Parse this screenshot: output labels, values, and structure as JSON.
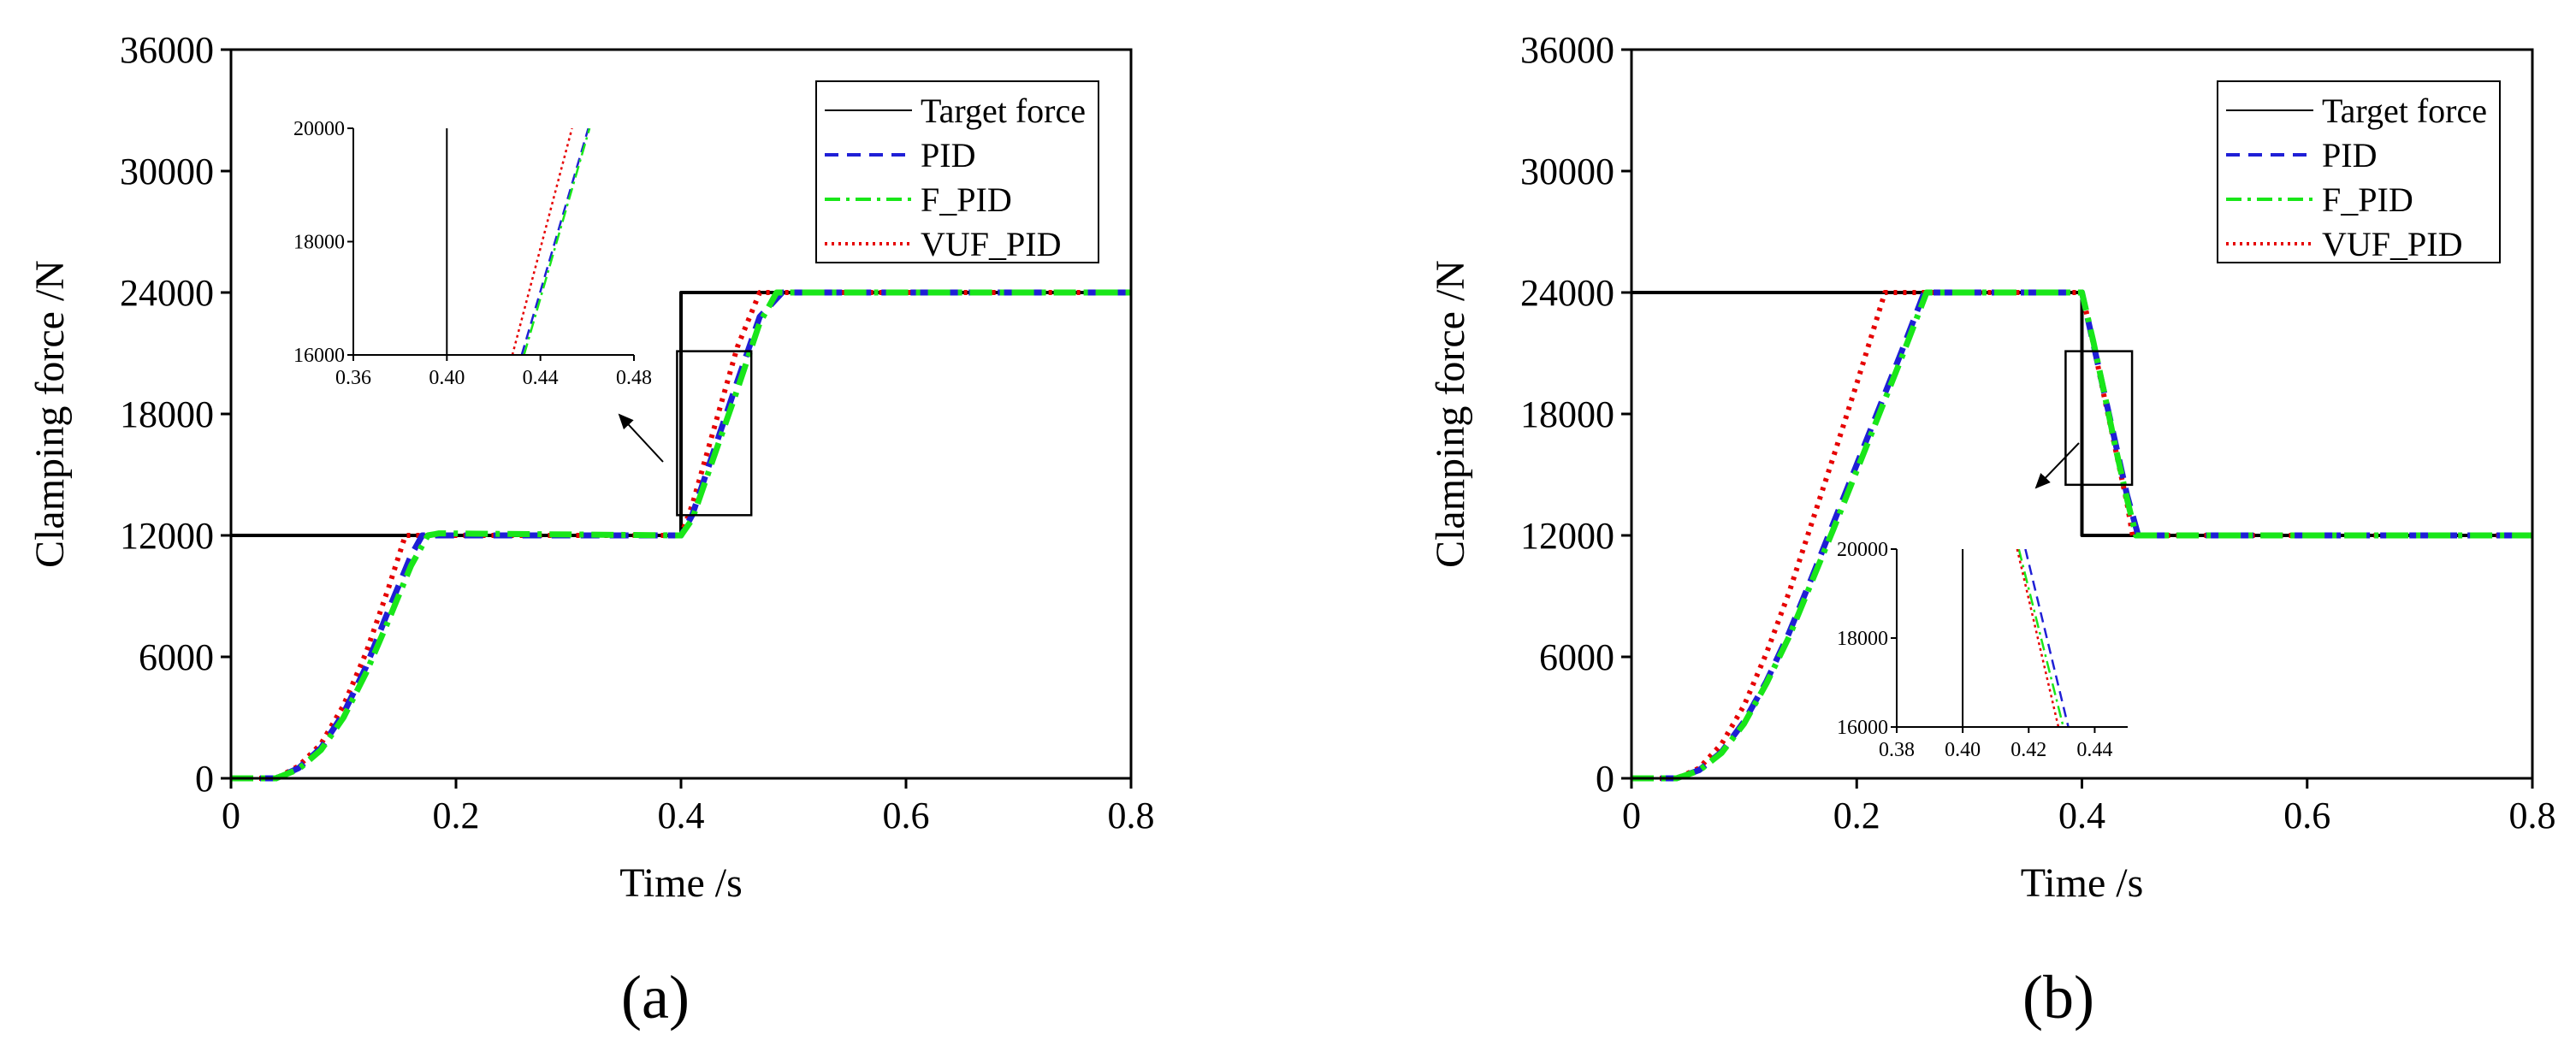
{
  "colors": {
    "target": "#000000",
    "pid": "#1f1fd6",
    "fpid": "#19e619",
    "vufpid": "#e60000"
  },
  "chart_data": [
    {
      "type": "line",
      "panel_label": "(a)",
      "xlabel": "Time /s",
      "ylabel": "Clamping force /N",
      "xlim": [
        0,
        0.8
      ],
      "ylim": [
        0,
        36000
      ],
      "xticks": [
        0,
        0.2,
        0.4,
        0.6,
        0.8
      ],
      "xtick_labels": [
        "0",
        "0.2",
        "0.4",
        "0.6",
        "0.8"
      ],
      "yticks": [
        0,
        6000,
        12000,
        18000,
        24000,
        30000,
        36000
      ],
      "ytick_labels": [
        "0",
        "6000",
        "12000",
        "18000",
        "24000",
        "30000",
        "36000"
      ],
      "legend_position": "top-right",
      "series": [
        {
          "name": "Target force",
          "style": "solid",
          "x": [
            0,
            0.4,
            0.4,
            0.8
          ],
          "y": [
            12000,
            12000,
            24000,
            24000
          ]
        },
        {
          "name": "PID",
          "style": "dashed",
          "x": [
            0,
            0.04,
            0.06,
            0.08,
            0.1,
            0.12,
            0.14,
            0.16,
            0.17,
            0.4,
            0.41,
            0.43,
            0.45,
            0.47,
            0.49,
            0.8
          ],
          "y": [
            0,
            0,
            500,
            1500,
            3200,
            5500,
            8300,
            11000,
            12000,
            12000,
            13000,
            16300,
            19600,
            22800,
            24000,
            24000
          ]
        },
        {
          "name": "F_PID",
          "style": "dashdot",
          "x": [
            0,
            0.04,
            0.06,
            0.08,
            0.1,
            0.12,
            0.14,
            0.16,
            0.175,
            0.185,
            0.4,
            0.41,
            0.43,
            0.45,
            0.47,
            0.485,
            0.8
          ],
          "y": [
            0,
            0,
            450,
            1400,
            3000,
            5200,
            7800,
            10500,
            12000,
            12100,
            12000,
            12800,
            16000,
            19200,
            22500,
            24000,
            24000
          ]
        },
        {
          "name": "VUF_PID",
          "style": "dotted",
          "x": [
            0,
            0.04,
            0.06,
            0.08,
            0.1,
            0.12,
            0.14,
            0.155,
            0.4,
            0.41,
            0.43,
            0.45,
            0.47,
            0.8
          ],
          "y": [
            0,
            0,
            600,
            1700,
            3600,
            6200,
            9400,
            12000,
            12000,
            13500,
            17400,
            21300,
            24000,
            24000
          ]
        }
      ],
      "inset": {
        "xlim": [
          0.36,
          0.48
        ],
        "ylim": [
          16000,
          20000
        ],
        "xticks": [
          0.36,
          0.4,
          0.44,
          0.48
        ],
        "xtick_labels": [
          "0.36",
          "0.40",
          "0.44",
          "0.48"
        ],
        "yticks": [
          16000,
          18000,
          20000
        ],
        "ytick_labels": [
          "16000",
          "18000",
          "20000"
        ],
        "series": [
          {
            "name": "Target force",
            "x": [
              0.4,
              0.4
            ],
            "y": [
              16000,
              20000
            ]
          },
          {
            "name": "PID",
            "x": [
              0.432,
              0.4605
            ],
            "y": [
              16000,
              20000
            ]
          },
          {
            "name": "F_PID",
            "x": [
              0.433,
              0.461
            ],
            "y": [
              16000,
              20000
            ]
          },
          {
            "name": "VUF_PID",
            "x": [
              0.428,
              0.4535
            ],
            "y": [
              16000,
              20000
            ]
          }
        ]
      }
    },
    {
      "type": "line",
      "panel_label": "(b)",
      "xlabel": "Time /s",
      "ylabel": "Clamping force /N",
      "xlim": [
        0,
        0.8
      ],
      "ylim": [
        0,
        36000
      ],
      "xticks": [
        0,
        0.2,
        0.4,
        0.6,
        0.8
      ],
      "xtick_labels": [
        "0",
        "0.2",
        "0.4",
        "0.6",
        "0.8"
      ],
      "yticks": [
        0,
        6000,
        12000,
        18000,
        24000,
        30000,
        36000
      ],
      "ytick_labels": [
        "0",
        "6000",
        "12000",
        "18000",
        "24000",
        "30000",
        "36000"
      ],
      "legend_position": "top-right",
      "series": [
        {
          "name": "Target force",
          "style": "solid",
          "x": [
            0,
            0.4,
            0.4,
            0.8
          ],
          "y": [
            24000,
            24000,
            12000,
            12000
          ]
        },
        {
          "name": "PID",
          "style": "dashed",
          "x": [
            0,
            0.04,
            0.06,
            0.08,
            0.1,
            0.12,
            0.14,
            0.16,
            0.18,
            0.2,
            0.22,
            0.24,
            0.26,
            0.4,
            0.41,
            0.42,
            0.43,
            0.44,
            0.45,
            0.8
          ],
          "y": [
            0,
            0,
            400,
            1300,
            2800,
            4800,
            7200,
            9900,
            12700,
            15500,
            18300,
            21100,
            24000,
            24000,
            21500,
            19000,
            16500,
            14000,
            12000,
            12000
          ]
        },
        {
          "name": "F_PID",
          "style": "dashdot",
          "x": [
            0,
            0.04,
            0.06,
            0.08,
            0.1,
            0.12,
            0.14,
            0.16,
            0.18,
            0.2,
            0.22,
            0.24,
            0.262,
            0.4,
            0.41,
            0.42,
            0.43,
            0.44,
            0.448,
            0.8
          ],
          "y": [
            0,
            0,
            380,
            1250,
            2700,
            4700,
            7000,
            9700,
            12400,
            15200,
            18000,
            20800,
            24000,
            24000,
            21600,
            19000,
            16300,
            13800,
            12000,
            12000
          ]
        },
        {
          "name": "VUF_PID",
          "style": "dotted",
          "x": [
            0,
            0.04,
            0.06,
            0.08,
            0.1,
            0.12,
            0.14,
            0.16,
            0.18,
            0.2,
            0.225,
            0.4,
            0.41,
            0.42,
            0.43,
            0.44,
            0.445,
            0.8
          ],
          "y": [
            0,
            0,
            500,
            1700,
            3600,
            6200,
            9200,
            12600,
            16000,
            19500,
            24000,
            24000,
            21500,
            18800,
            16200,
            13600,
            12000,
            12000
          ]
        }
      ],
      "inset": {
        "xlim": [
          0.38,
          0.45
        ],
        "ylim": [
          16000,
          20000
        ],
        "xticks": [
          0.38,
          0.4,
          0.42,
          0.44
        ],
        "xtick_labels": [
          "0.38",
          "0.40",
          "0.42",
          "0.44"
        ],
        "yticks": [
          16000,
          18000,
          20000
        ],
        "ytick_labels": [
          "16000",
          "18000",
          "20000"
        ],
        "series": [
          {
            "name": "Target force",
            "x": [
              0.4,
              0.4
            ],
            "y": [
              16000,
              20000
            ]
          },
          {
            "name": "PID",
            "x": [
              0.419,
              0.432
            ],
            "y": [
              20000,
              16000
            ]
          },
          {
            "name": "F_PID",
            "x": [
              0.417,
              0.4305
            ],
            "y": [
              20000,
              16000
            ]
          },
          {
            "name": "VUF_PID",
            "x": [
              0.4165,
              0.429
            ],
            "y": [
              20000,
              16000
            ]
          }
        ]
      }
    }
  ]
}
